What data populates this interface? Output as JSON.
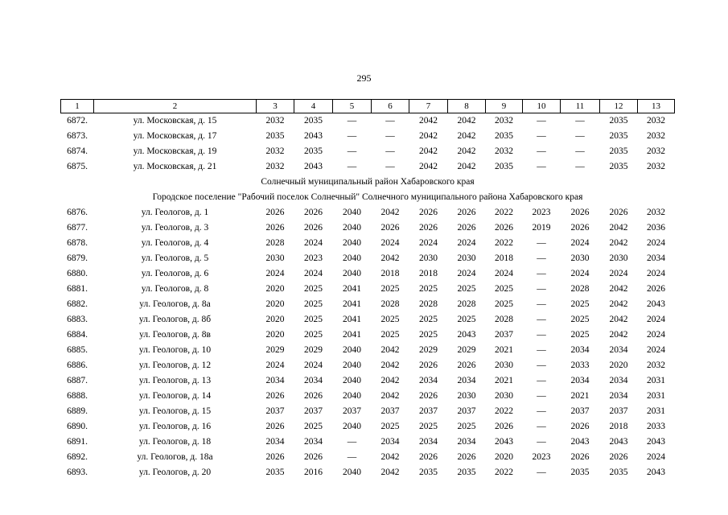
{
  "page_number": "295",
  "table": {
    "headers": [
      "1",
      "2",
      "3",
      "4",
      "5",
      "6",
      "7",
      "8",
      "9",
      "10",
      "11",
      "12",
      "13"
    ],
    "rows": [
      {
        "type": "data",
        "num": "6872.",
        "address": "ул. Московская, д. 15",
        "values": [
          "2032",
          "2035",
          "—",
          "—",
          "2042",
          "2042",
          "2032",
          "—",
          "—",
          "2035",
          "2032"
        ]
      },
      {
        "type": "data",
        "num": "6873.",
        "address": "ул. Московская, д. 17",
        "values": [
          "2035",
          "2043",
          "—",
          "—",
          "2042",
          "2042",
          "2035",
          "—",
          "—",
          "2035",
          "2032"
        ]
      },
      {
        "type": "data",
        "num": "6874.",
        "address": "ул. Московская, д. 19",
        "values": [
          "2032",
          "2035",
          "—",
          "—",
          "2042",
          "2042",
          "2032",
          "—",
          "—",
          "2035",
          "2032"
        ]
      },
      {
        "type": "data",
        "num": "6875.",
        "address": "ул. Московская, д. 21",
        "values": [
          "2032",
          "2043",
          "—",
          "—",
          "2042",
          "2042",
          "2035",
          "—",
          "—",
          "2035",
          "2032"
        ]
      },
      {
        "type": "section",
        "text": "Солнечный муниципальный район Хабаровского края"
      },
      {
        "type": "section",
        "text": "Городское поселение \"Рабочий поселок Солнечный\" Солнечного муниципального района Хабаровского края"
      },
      {
        "type": "data",
        "num": "6876.",
        "address": "ул. Геологов, д. 1",
        "values": [
          "2026",
          "2026",
          "2040",
          "2042",
          "2026",
          "2026",
          "2022",
          "2023",
          "2026",
          "2026",
          "2032"
        ]
      },
      {
        "type": "data",
        "num": "6877.",
        "address": "ул. Геологов, д. 3",
        "values": [
          "2026",
          "2026",
          "2040",
          "2026",
          "2026",
          "2026",
          "2026",
          "2019",
          "2026",
          "2042",
          "2036"
        ]
      },
      {
        "type": "data",
        "num": "6878.",
        "address": "ул. Геологов, д. 4",
        "values": [
          "2028",
          "2024",
          "2040",
          "2024",
          "2024",
          "2024",
          "2022",
          "—",
          "2024",
          "2042",
          "2024"
        ]
      },
      {
        "type": "data",
        "num": "6879.",
        "address": "ул. Геологов, д. 5",
        "values": [
          "2030",
          "2023",
          "2040",
          "2042",
          "2030",
          "2030",
          "2018",
          "—",
          "2030",
          "2030",
          "2034"
        ]
      },
      {
        "type": "data",
        "num": "6880.",
        "address": "ул. Геологов, д. 6",
        "values": [
          "2024",
          "2024",
          "2040",
          "2018",
          "2018",
          "2024",
          "2024",
          "—",
          "2024",
          "2024",
          "2024"
        ]
      },
      {
        "type": "data",
        "num": "6881.",
        "address": "ул. Геологов, д. 8",
        "values": [
          "2020",
          "2025",
          "2041",
          "2025",
          "2025",
          "2025",
          "2025",
          "—",
          "2028",
          "2042",
          "2026"
        ]
      },
      {
        "type": "data",
        "num": "6882.",
        "address": "ул. Геологов, д. 8а",
        "values": [
          "2020",
          "2025",
          "2041",
          "2028",
          "2028",
          "2028",
          "2025",
          "—",
          "2025",
          "2042",
          "2043"
        ]
      },
      {
        "type": "data",
        "num": "6883.",
        "address": "ул. Геологов, д. 8б",
        "values": [
          "2020",
          "2025",
          "2041",
          "2025",
          "2025",
          "2025",
          "2028",
          "—",
          "2025",
          "2042",
          "2024"
        ]
      },
      {
        "type": "data",
        "num": "6884.",
        "address": "ул. Геологов, д. 8в",
        "values": [
          "2020",
          "2025",
          "2041",
          "2025",
          "2025",
          "2043",
          "2037",
          "—",
          "2025",
          "2042",
          "2024"
        ]
      },
      {
        "type": "data",
        "num": "6885.",
        "address": "ул. Геологов, д. 10",
        "values": [
          "2029",
          "2029",
          "2040",
          "2042",
          "2029",
          "2029",
          "2021",
          "—",
          "2034",
          "2034",
          "2024"
        ]
      },
      {
        "type": "data",
        "num": "6886.",
        "address": "ул. Геологов, д. 12",
        "values": [
          "2024",
          "2024",
          "2040",
          "2042",
          "2026",
          "2026",
          "2030",
          "—",
          "2033",
          "2020",
          "2032"
        ]
      },
      {
        "type": "data",
        "num": "6887.",
        "address": "ул. Геологов, д. 13",
        "values": [
          "2034",
          "2034",
          "2040",
          "2042",
          "2034",
          "2034",
          "2021",
          "—",
          "2034",
          "2034",
          "2031"
        ]
      },
      {
        "type": "data",
        "num": "6888.",
        "address": "ул. Геологов, д. 14",
        "values": [
          "2026",
          "2026",
          "2040",
          "2042",
          "2026",
          "2030",
          "2030",
          "—",
          "2021",
          "2034",
          "2031"
        ]
      },
      {
        "type": "data",
        "num": "6889.",
        "address": "ул. Геологов, д. 15",
        "values": [
          "2037",
          "2037",
          "2037",
          "2037",
          "2037",
          "2037",
          "2022",
          "—",
          "2037",
          "2037",
          "2031"
        ]
      },
      {
        "type": "data",
        "num": "6890.",
        "address": "ул. Геологов, д. 16",
        "values": [
          "2026",
          "2025",
          "2040",
          "2025",
          "2025",
          "2025",
          "2026",
          "—",
          "2026",
          "2018",
          "2033"
        ]
      },
      {
        "type": "data",
        "num": "6891.",
        "address": "ул. Геологов, д. 18",
        "values": [
          "2034",
          "2034",
          "—",
          "2034",
          "2034",
          "2034",
          "2043",
          "—",
          "2043",
          "2043",
          "2043"
        ]
      },
      {
        "type": "data",
        "num": "6892.",
        "address": "ул. Геологов, д. 18а",
        "values": [
          "2026",
          "2026",
          "—",
          "2042",
          "2026",
          "2026",
          "2020",
          "2023",
          "2026",
          "2026",
          "2024"
        ]
      },
      {
        "type": "data",
        "num": "6893.",
        "address": "ул. Геологов, д. 20",
        "values": [
          "2035",
          "2016",
          "2040",
          "2042",
          "2035",
          "2035",
          "2022",
          "—",
          "2035",
          "2035",
          "2043"
        ]
      }
    ]
  }
}
